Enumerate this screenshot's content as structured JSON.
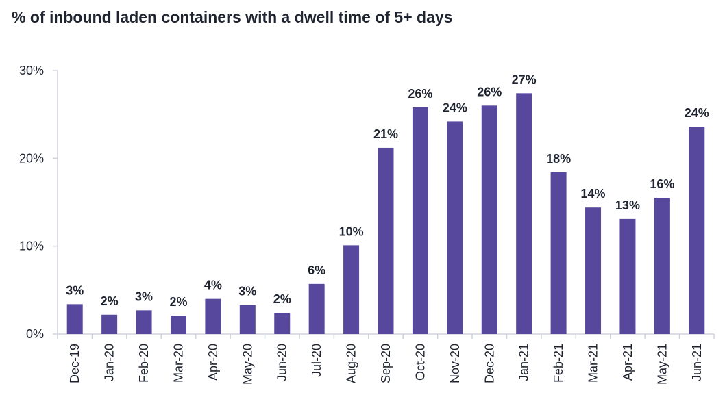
{
  "chart_data": {
    "type": "bar",
    "title": "% of inbound laden containers with a dwell time of 5+ days",
    "xlabel": "",
    "ylabel": "",
    "categories": [
      "Dec-19",
      "Jan-20",
      "Feb-20",
      "Mar-20",
      "Apr-20",
      "May-20",
      "Jun-20",
      "Jul-20",
      "Aug-20",
      "Sep-20",
      "Oct-20",
      "Nov-20",
      "Dec-20",
      "Jan-21",
      "Feb-21",
      "Mar-21",
      "Apr-21",
      "May-21",
      "Jun-21"
    ],
    "values": [
      3.4,
      2.2,
      2.7,
      2.1,
      4.0,
      3.3,
      2.4,
      5.7,
      10.1,
      21.2,
      25.8,
      24.2,
      26.0,
      27.4,
      18.4,
      14.4,
      13.1,
      15.5,
      23.6
    ],
    "data_labels": [
      "3%",
      "2%",
      "3%",
      "2%",
      "4%",
      "3%",
      "2%",
      "6%",
      "10%",
      "21%",
      "26%",
      "24%",
      "26%",
      "27%",
      "18%",
      "14%",
      "13%",
      "16%",
      "24%"
    ],
    "ylim": [
      0,
      30
    ],
    "yticks": [
      0,
      10,
      20,
      30
    ],
    "ytick_labels": [
      "0%",
      "10%",
      "20%",
      "30%"
    ],
    "grid": false,
    "legend": "none",
    "colors": {
      "bar": "#57479d",
      "axis": "#cfd3dd",
      "text": "#1f2430"
    }
  }
}
